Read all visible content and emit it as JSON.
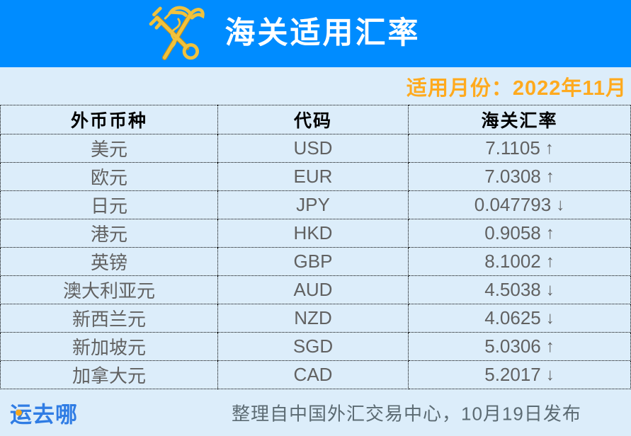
{
  "header": {
    "title": "海关适用汇率",
    "emblem_icon": "china-customs-emblem"
  },
  "period_banner": {
    "text": "适用月份：2022年11月"
  },
  "chart_data": {
    "type": "table",
    "title": "海关适用汇率",
    "period": "2022年11月",
    "columns": [
      "外币币种",
      "代码",
      "海关汇率"
    ],
    "rows": [
      {
        "currency": "美元",
        "code": "USD",
        "rate": "7.1105",
        "trend": "up"
      },
      {
        "currency": "欧元",
        "code": "EUR",
        "rate": "7.0308",
        "trend": "up"
      },
      {
        "currency": "日元",
        "code": "JPY",
        "rate": "0.047793",
        "trend": "down"
      },
      {
        "currency": "港元",
        "code": "HKD",
        "rate": "0.9058",
        "trend": "up"
      },
      {
        "currency": "英镑",
        "code": "GBP",
        "rate": "8.1002",
        "trend": "up"
      },
      {
        "currency": "澳大利亚元",
        "code": "AUD",
        "rate": "4.5038",
        "trend": "down"
      },
      {
        "currency": "新西兰元",
        "code": "NZD",
        "rate": "4.0625",
        "trend": "down"
      },
      {
        "currency": "新加坡元",
        "code": "SGD",
        "rate": "5.0306",
        "trend": "up"
      },
      {
        "currency": "加拿大元",
        "code": "CAD",
        "rate": "5.2017",
        "trend": "down"
      }
    ],
    "trend_glyphs": {
      "up": "↑",
      "down": "↓"
    }
  },
  "footer": {
    "logo_text": "运去哪",
    "note": "整理自中国外汇交易中心，10月19日发布"
  },
  "colors": {
    "header_bg": "#008cff",
    "panel_bg": "#dcedfa",
    "accent_orange": "#ffaa1e",
    "header_text": "#ffffff",
    "table_border": "#000000",
    "data_text": "#616161",
    "logo_blue": "#2f7ce4",
    "logo_dot_orange": "#f7a71c",
    "note_text": "#5c6b73",
    "emblem_gold": "#f0c23d"
  }
}
